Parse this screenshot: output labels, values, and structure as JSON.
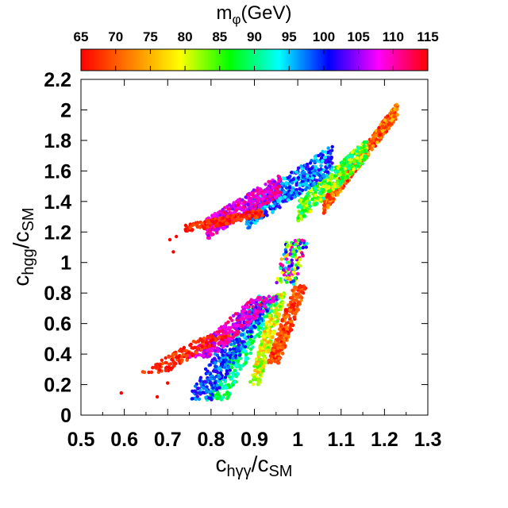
{
  "chart_data": {
    "type": "scatter",
    "xlim": [
      0.5,
      1.3
    ],
    "ylim": [
      0,
      2.2
    ],
    "x_ticks": [
      "0.5",
      "0.6",
      "0.7",
      "0.8",
      "0.9",
      "1",
      "1.1",
      "1.2",
      "1.3"
    ],
    "y_ticks": [
      "0",
      "0.2",
      "0.4",
      "0.6",
      "0.8",
      "1",
      "1.2",
      "1.4",
      "1.6",
      "1.8",
      "2",
      "2.2"
    ],
    "xlabel": {
      "main": "c",
      "sub1": "hγγ",
      "slash": "/c",
      "sub2": "SM"
    },
    "ylabel": {
      "main": "c",
      "sub1": "hgg",
      "slash": "/c",
      "sub2": "SM"
    },
    "colorbar": {
      "title_main": "m",
      "title_sub": "φ",
      "title_rest": "(GeV)",
      "range": [
        65,
        115
      ],
      "ticks": [
        "65",
        "70",
        "75",
        "80",
        "85",
        "90",
        "95",
        "100",
        "105",
        "110",
        "115"
      ],
      "stops": [
        "#ff0000",
        "#ff8000",
        "#ffff00",
        "#00ff00",
        "#00ffff",
        "#0000ff",
        "#ff00ff",
        "#ff0000"
      ]
    },
    "grid": false,
    "regions": [
      {
        "name": "upper-left-red",
        "x": [
          0.74,
          0.9
        ],
        "y": [
          1.18,
          1.32
        ],
        "mass": [
          65,
          72
        ]
      },
      {
        "name": "upper-magenta",
        "x": [
          0.8,
          0.95
        ],
        "y": [
          1.25,
          1.55
        ],
        "mass": [
          105,
          113
        ]
      },
      {
        "name": "upper-blue",
        "x": [
          0.88,
          1.05
        ],
        "y": [
          1.35,
          1.75
        ],
        "mass": [
          95,
          102
        ]
      },
      {
        "name": "upper-cyan-green",
        "x": [
          0.98,
          1.1
        ],
        "y": [
          1.25,
          1.75
        ],
        "mass": [
          84,
          93
        ]
      },
      {
        "name": "upper-yellow-red",
        "x": [
          1.06,
          1.23
        ],
        "y": [
          1.4,
          2.03
        ],
        "mass": [
          65,
          78
        ]
      },
      {
        "name": "center-neck",
        "x": [
          0.97,
          1.03
        ],
        "y": [
          0.85,
          1.15
        ],
        "mass": [
          75,
          110
        ]
      },
      {
        "name": "lower-red",
        "x": [
          0.68,
          0.85
        ],
        "y": [
          0.3,
          0.5
        ],
        "mass": [
          65,
          72
        ]
      },
      {
        "name": "lower-magenta",
        "x": [
          0.8,
          0.93
        ],
        "y": [
          0.45,
          0.75
        ],
        "mass": [
          105,
          113
        ]
      },
      {
        "name": "lower-blue",
        "x": [
          0.8,
          0.92
        ],
        "y": [
          0.1,
          0.6
        ],
        "mass": [
          95,
          102
        ]
      },
      {
        "name": "lower-cyan",
        "x": [
          0.83,
          0.94
        ],
        "y": [
          0.1,
          0.65
        ],
        "mass": [
          86,
          93
        ]
      },
      {
        "name": "lower-green-yellow",
        "x": [
          0.9,
          0.96
        ],
        "y": [
          0.2,
          0.7
        ],
        "mass": [
          76,
          84
        ]
      },
      {
        "name": "lower-orange-red",
        "x": [
          0.94,
          1.0
        ],
        "y": [
          0.33,
          0.8
        ],
        "mass": [
          65,
          72
        ]
      }
    ],
    "outliers": [
      {
        "x": 0.593,
        "y": 0.145,
        "mass": 65
      },
      {
        "x": 0.676,
        "y": 0.12,
        "mass": 65
      },
      {
        "x": 0.7,
        "y": 0.21,
        "mass": 65
      },
      {
        "x": 0.713,
        "y": 1.07,
        "mass": 65
      },
      {
        "x": 0.72,
        "y": 1.17,
        "mass": 65
      },
      {
        "x": 0.705,
        "y": 1.15,
        "mass": 65
      }
    ]
  }
}
